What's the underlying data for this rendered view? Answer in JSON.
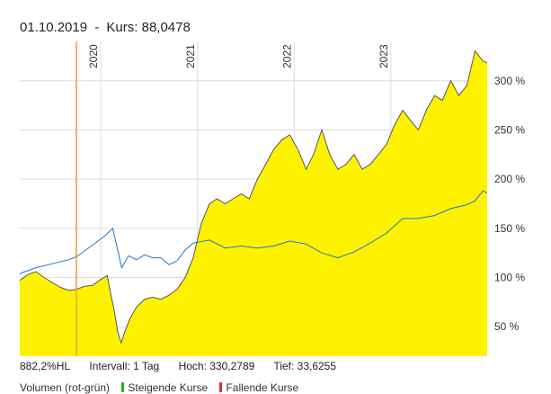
{
  "header": {
    "date": "01.10.2019",
    "separator": "-",
    "price_label": "Kurs: 88,0478"
  },
  "footer": {
    "change": "882,2%HL",
    "interval": "Intervall: 1 Tag",
    "high": "Hoch: 330,2789",
    "low": "Tief: 33,6255"
  },
  "legend": {
    "volume": "Volumen (rot-grün)",
    "rising": "Steigende Kurse",
    "falling": "Fallende Kurse"
  },
  "colors": {
    "area_fill": "#fff200",
    "area_line": "#555555",
    "benchmark_line": "#1f77c9",
    "cursor_line": "#f39a2c",
    "rising": "#22b022",
    "falling": "#e03333"
  },
  "chart_data": {
    "type": "area",
    "x_range": [
      "2019-03-01",
      "2023-12-31"
    ],
    "ylim": [
      20,
      340
    ],
    "y_ticks": [
      50,
      100,
      150,
      200,
      250,
      300
    ],
    "y_tick_labels": [
      "50 %",
      "100 %",
      "150 %",
      "200 %",
      "250 %",
      "300 %"
    ],
    "x_ticks": [
      "2020-01-01",
      "2021-01-01",
      "2022-01-01",
      "2023-01-01"
    ],
    "x_tick_labels": [
      "2020",
      "2021",
      "2022",
      "2023"
    ],
    "cursor_date": "2019-10-01",
    "series": [
      {
        "points": [
          [
            "2019-03-01",
            97
          ],
          [
            "2019-04-01",
            103
          ],
          [
            "2019-05-01",
            106
          ],
          [
            "2019-06-01",
            100
          ],
          [
            "2019-07-01",
            95
          ],
          [
            "2019-08-01",
            90
          ],
          [
            "2019-09-01",
            87
          ],
          [
            "2019-10-01",
            88
          ],
          [
            "2019-11-01",
            91
          ],
          [
            "2019-12-01",
            92
          ],
          [
            "2020-01-01",
            98
          ],
          [
            "2020-01-25",
            102
          ],
          [
            "2020-02-10",
            80
          ],
          [
            "2020-02-22",
            65
          ],
          [
            "2020-03-05",
            45
          ],
          [
            "2020-03-18",
            33.6
          ],
          [
            "2020-04-01",
            45
          ],
          [
            "2020-04-20",
            58
          ],
          [
            "2020-05-15",
            70
          ],
          [
            "2020-06-15",
            78
          ],
          [
            "2020-07-15",
            80
          ],
          [
            "2020-08-15",
            78
          ],
          [
            "2020-09-15",
            82
          ],
          [
            "2020-10-15",
            88
          ],
          [
            "2020-11-15",
            100
          ],
          [
            "2020-12-15",
            120
          ],
          [
            "2021-01-15",
            155
          ],
          [
            "2021-02-15",
            175
          ],
          [
            "2021-03-15",
            180
          ],
          [
            "2021-04-15",
            175
          ],
          [
            "2021-05-15",
            180
          ],
          [
            "2021-06-15",
            185
          ],
          [
            "2021-07-15",
            180
          ],
          [
            "2021-08-15",
            200
          ],
          [
            "2021-09-15",
            215
          ],
          [
            "2021-10-15",
            230
          ],
          [
            "2021-11-15",
            240
          ],
          [
            "2021-12-15",
            245
          ],
          [
            "2022-01-15",
            230
          ],
          [
            "2022-02-15",
            210
          ],
          [
            "2022-03-15",
            225
          ],
          [
            "2022-04-15",
            250
          ],
          [
            "2022-05-15",
            225
          ],
          [
            "2022-06-15",
            210
          ],
          [
            "2022-07-15",
            215
          ],
          [
            "2022-08-15",
            225
          ],
          [
            "2022-09-15",
            210
          ],
          [
            "2022-10-15",
            215
          ],
          [
            "2022-11-15",
            225
          ],
          [
            "2022-12-15",
            235
          ],
          [
            "2023-01-15",
            255
          ],
          [
            "2023-02-15",
            270
          ],
          [
            "2023-03-15",
            260
          ],
          [
            "2023-04-15",
            250
          ],
          [
            "2023-05-15",
            270
          ],
          [
            "2023-06-15",
            285
          ],
          [
            "2023-07-15",
            280
          ],
          [
            "2023-08-15",
            300
          ],
          [
            "2023-09-15",
            285
          ],
          [
            "2023-10-15",
            295
          ],
          [
            "2023-11-15",
            330.3
          ],
          [
            "2023-12-15",
            320
          ],
          [
            "2023-12-31",
            318
          ]
        ]
      },
      {
        "points": [
          [
            "2019-03-01",
            104
          ],
          [
            "2019-05-01",
            110
          ],
          [
            "2019-07-01",
            114
          ],
          [
            "2019-09-01",
            118
          ],
          [
            "2019-10-01",
            121
          ],
          [
            "2019-11-01",
            127
          ],
          [
            "2019-12-01",
            133
          ],
          [
            "2020-01-15",
            142
          ],
          [
            "2020-02-15",
            150
          ],
          [
            "2020-03-05",
            128
          ],
          [
            "2020-03-20",
            110
          ],
          [
            "2020-04-15",
            122
          ],
          [
            "2020-05-15",
            118
          ],
          [
            "2020-06-15",
            123
          ],
          [
            "2020-07-15",
            120
          ],
          [
            "2020-08-15",
            120
          ],
          [
            "2020-09-15",
            113
          ],
          [
            "2020-10-15",
            117
          ],
          [
            "2020-11-15",
            128
          ],
          [
            "2020-12-15",
            135
          ],
          [
            "2021-02-15",
            138
          ],
          [
            "2021-04-15",
            130
          ],
          [
            "2021-06-15",
            132
          ],
          [
            "2021-08-15",
            130
          ],
          [
            "2021-10-15",
            132
          ],
          [
            "2021-12-15",
            137
          ],
          [
            "2022-02-15",
            134
          ],
          [
            "2022-04-15",
            125
          ],
          [
            "2022-06-15",
            120
          ],
          [
            "2022-08-15",
            126
          ],
          [
            "2022-10-15",
            135
          ],
          [
            "2022-12-15",
            145
          ],
          [
            "2023-02-15",
            160
          ],
          [
            "2023-04-15",
            160
          ],
          [
            "2023-06-15",
            163
          ],
          [
            "2023-08-15",
            170
          ],
          [
            "2023-10-15",
            174
          ],
          [
            "2023-11-15",
            178
          ],
          [
            "2023-12-15",
            188
          ],
          [
            "2023-12-31",
            186
          ]
        ]
      }
    ]
  }
}
